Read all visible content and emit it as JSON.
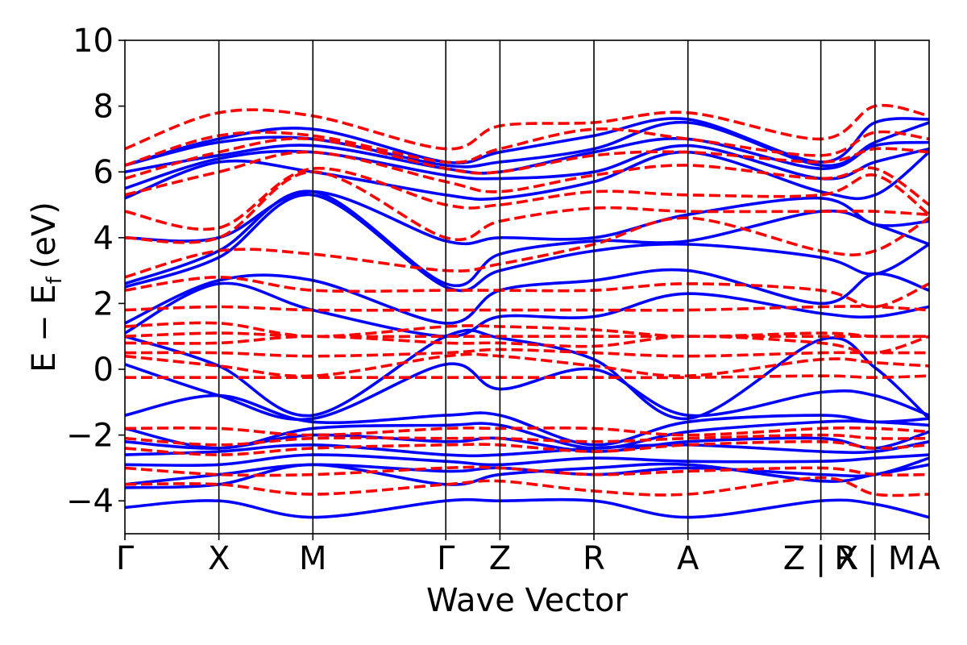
{
  "chart_data": {
    "type": "line",
    "title": "",
    "xlabel": "Wave Vector",
    "ylabel_text": "E − E",
    "ylabel_sub": "f",
    "ylabel_unit": "(eV)",
    "ylim": [
      -5,
      10
    ],
    "yticks": [
      -4,
      -2,
      0,
      2,
      4,
      6,
      8,
      10
    ],
    "ytick_labels": [
      "−4",
      "−2",
      "0",
      "2",
      "4",
      "6",
      "8",
      "10"
    ],
    "kpath": [
      {
        "label": "Γ",
        "x": 0.0
      },
      {
        "label": "X",
        "x": 1.0
      },
      {
        "label": "M",
        "x": 2.0
      },
      {
        "label": "Γ",
        "x": 3.414
      },
      {
        "label": "Z",
        "x": 3.99
      },
      {
        "label": "R",
        "x": 4.99
      },
      {
        "label": "A",
        "x": 5.99
      },
      {
        "label": "Z | X",
        "x": 7.404
      },
      {
        "label": "R | M",
        "x": 7.98
      },
      {
        "label": "A",
        "x": 8.556
      }
    ],
    "xlim": [
      0,
      8.556
    ],
    "grid": false,
    "legend": "none",
    "colors": {
      "series_a": "#0000ff",
      "series_b": "#ff0000"
    },
    "series": [
      {
        "style": "solid",
        "color": "#0000ff",
        "bands": [
          [
            -4.2,
            -4.0,
            -4.5,
            -4.0,
            -4.0,
            -4.0,
            -4.5,
            -4.0,
            -4.1,
            -4.5
          ],
          [
            -3.6,
            -3.5,
            -2.9,
            -3.5,
            -3.2,
            -3.0,
            -2.9,
            -3.4,
            -3.2,
            -2.9
          ],
          [
            -3.5,
            -3.2,
            -2.9,
            -3.1,
            -3.0,
            -3.2,
            -3.0,
            -3.2,
            -3.2,
            -2.7
          ],
          [
            -2.9,
            -2.9,
            -2.6,
            -2.8,
            -2.9,
            -2.7,
            -2.8,
            -2.8,
            -2.7,
            -2.6
          ],
          [
            -2.6,
            -2.5,
            -2.3,
            -2.6,
            -2.6,
            -2.4,
            -2.3,
            -2.5,
            -2.5,
            -2.2
          ],
          [
            -2.2,
            -2.4,
            -2.0,
            -2.2,
            -2.1,
            -2.5,
            -2.2,
            -2.1,
            -2.4,
            -1.9
          ],
          [
            -1.8,
            -2.4,
            -1.8,
            -1.7,
            -1.7,
            -2.4,
            -1.9,
            -1.6,
            -1.6,
            -1.7
          ],
          [
            -1.4,
            -0.8,
            -1.6,
            -1.4,
            -1.4,
            -2.3,
            -1.6,
            -1.4,
            -1.6,
            -1.5
          ],
          [
            0.15,
            -0.8,
            -1.5,
            0.15,
            -0.6,
            0.0,
            -1.4,
            -0.7,
            -0.8,
            -1.4
          ],
          [
            1.0,
            0.1,
            -1.4,
            1.0,
            0.95,
            0.3,
            -1.5,
            0.9,
            0.05,
            -1.5
          ],
          [
            1.1,
            2.6,
            1.8,
            1.0,
            1.6,
            1.6,
            2.3,
            1.7,
            1.6,
            1.9
          ],
          [
            1.4,
            2.7,
            2.7,
            1.4,
            2.4,
            2.7,
            3.0,
            2.0,
            2.9,
            2.4
          ],
          [
            2.5,
            3.4,
            5.3,
            2.5,
            3.0,
            3.6,
            3.8,
            3.4,
            2.9,
            3.8
          ],
          [
            2.6,
            3.6,
            5.4,
            2.6,
            3.5,
            3.9,
            3.9,
            4.8,
            4.4,
            3.8
          ],
          [
            4.0,
            4.0,
            5.4,
            3.9,
            4.0,
            4.0,
            4.7,
            5.2,
            4.4,
            4.5
          ],
          [
            5.2,
            6.3,
            6.0,
            5.3,
            5.2,
            5.7,
            6.6,
            5.4,
            5.3,
            6.6
          ],
          [
            5.5,
            6.4,
            6.6,
            5.9,
            5.8,
            6.0,
            6.8,
            5.8,
            6.3,
            6.7
          ],
          [
            6.0,
            6.5,
            6.8,
            6.1,
            6.0,
            6.6,
            7.0,
            6.1,
            6.8,
            6.9
          ],
          [
            6.2,
            6.9,
            7.0,
            6.2,
            6.3,
            6.7,
            7.5,
            6.2,
            6.9,
            7.5
          ],
          [
            6.2,
            7.0,
            7.3,
            6.3,
            6.6,
            7.1,
            7.6,
            6.3,
            7.5,
            7.6
          ]
        ]
      },
      {
        "style": "dashed",
        "color": "#ff0000",
        "bands": [
          [
            -3.5,
            -3.5,
            -3.8,
            -3.5,
            -3.4,
            -3.7,
            -3.8,
            -3.3,
            -3.8,
            -3.8
          ],
          [
            -3.0,
            -3.2,
            -3.2,
            -3.0,
            -3.0,
            -3.2,
            -3.1,
            -3.0,
            -3.2,
            -3.2
          ],
          [
            -2.4,
            -2.6,
            -2.4,
            -2.3,
            -2.3,
            -2.5,
            -2.3,
            -2.2,
            -2.4,
            -2.3
          ],
          [
            -2.1,
            -2.3,
            -2.1,
            -2.1,
            -2.1,
            -2.2,
            -2.1,
            -2.0,
            -2.1,
            -2.1
          ],
          [
            -1.8,
            -1.8,
            -2.0,
            -1.8,
            -1.8,
            -1.8,
            -2.0,
            -1.8,
            -1.8,
            -1.9
          ],
          [
            -0.25,
            -0.25,
            -0.25,
            -0.25,
            -0.25,
            -0.25,
            -0.25,
            -0.2,
            -0.25,
            -0.2
          ],
          [
            0.4,
            0.1,
            -0.2,
            0.4,
            0.4,
            0.1,
            -0.2,
            0.3,
            0.2,
            0.1
          ],
          [
            0.5,
            0.5,
            0.4,
            0.5,
            0.6,
            0.5,
            0.4,
            0.5,
            0.5,
            0.5
          ],
          [
            0.8,
            0.8,
            1.0,
            0.8,
            0.8,
            0.7,
            1.0,
            0.8,
            0.5,
            1.0
          ],
          [
            1.0,
            1.1,
            1.0,
            1.0,
            1.0,
            1.0,
            1.0,
            1.0,
            1.0,
            1.0
          ],
          [
            1.3,
            1.4,
            1.0,
            1.3,
            1.3,
            1.2,
            1.0,
            1.1,
            1.0,
            1.0
          ],
          [
            1.8,
            1.9,
            1.8,
            1.8,
            1.8,
            1.8,
            1.8,
            1.9,
            1.9,
            1.8
          ],
          [
            2.4,
            2.8,
            2.4,
            2.4,
            2.4,
            2.4,
            2.6,
            2.4,
            1.9,
            2.6
          ],
          [
            2.8,
            3.6,
            3.5,
            3.0,
            3.2,
            3.8,
            4.6,
            3.6,
            3.6,
            4.6
          ],
          [
            4.0,
            4.0,
            6.0,
            4.0,
            4.5,
            4.9,
            4.8,
            4.8,
            4.8,
            4.7
          ],
          [
            4.8,
            4.3,
            6.1,
            5.0,
            5.0,
            5.4,
            5.3,
            5.3,
            5.9,
            4.7
          ],
          [
            5.3,
            6.0,
            6.6,
            5.7,
            5.4,
            5.9,
            6.2,
            5.8,
            6.1,
            5.0
          ],
          [
            5.8,
            6.6,
            7.0,
            6.1,
            6.0,
            6.5,
            6.6,
            6.3,
            6.7,
            6.6
          ],
          [
            6.2,
            7.1,
            7.1,
            6.3,
            6.7,
            7.3,
            7.0,
            6.5,
            7.2,
            7.0
          ],
          [
            6.7,
            7.8,
            7.7,
            6.7,
            7.4,
            7.5,
            7.8,
            7.0,
            8.0,
            7.7
          ]
        ]
      }
    ]
  }
}
